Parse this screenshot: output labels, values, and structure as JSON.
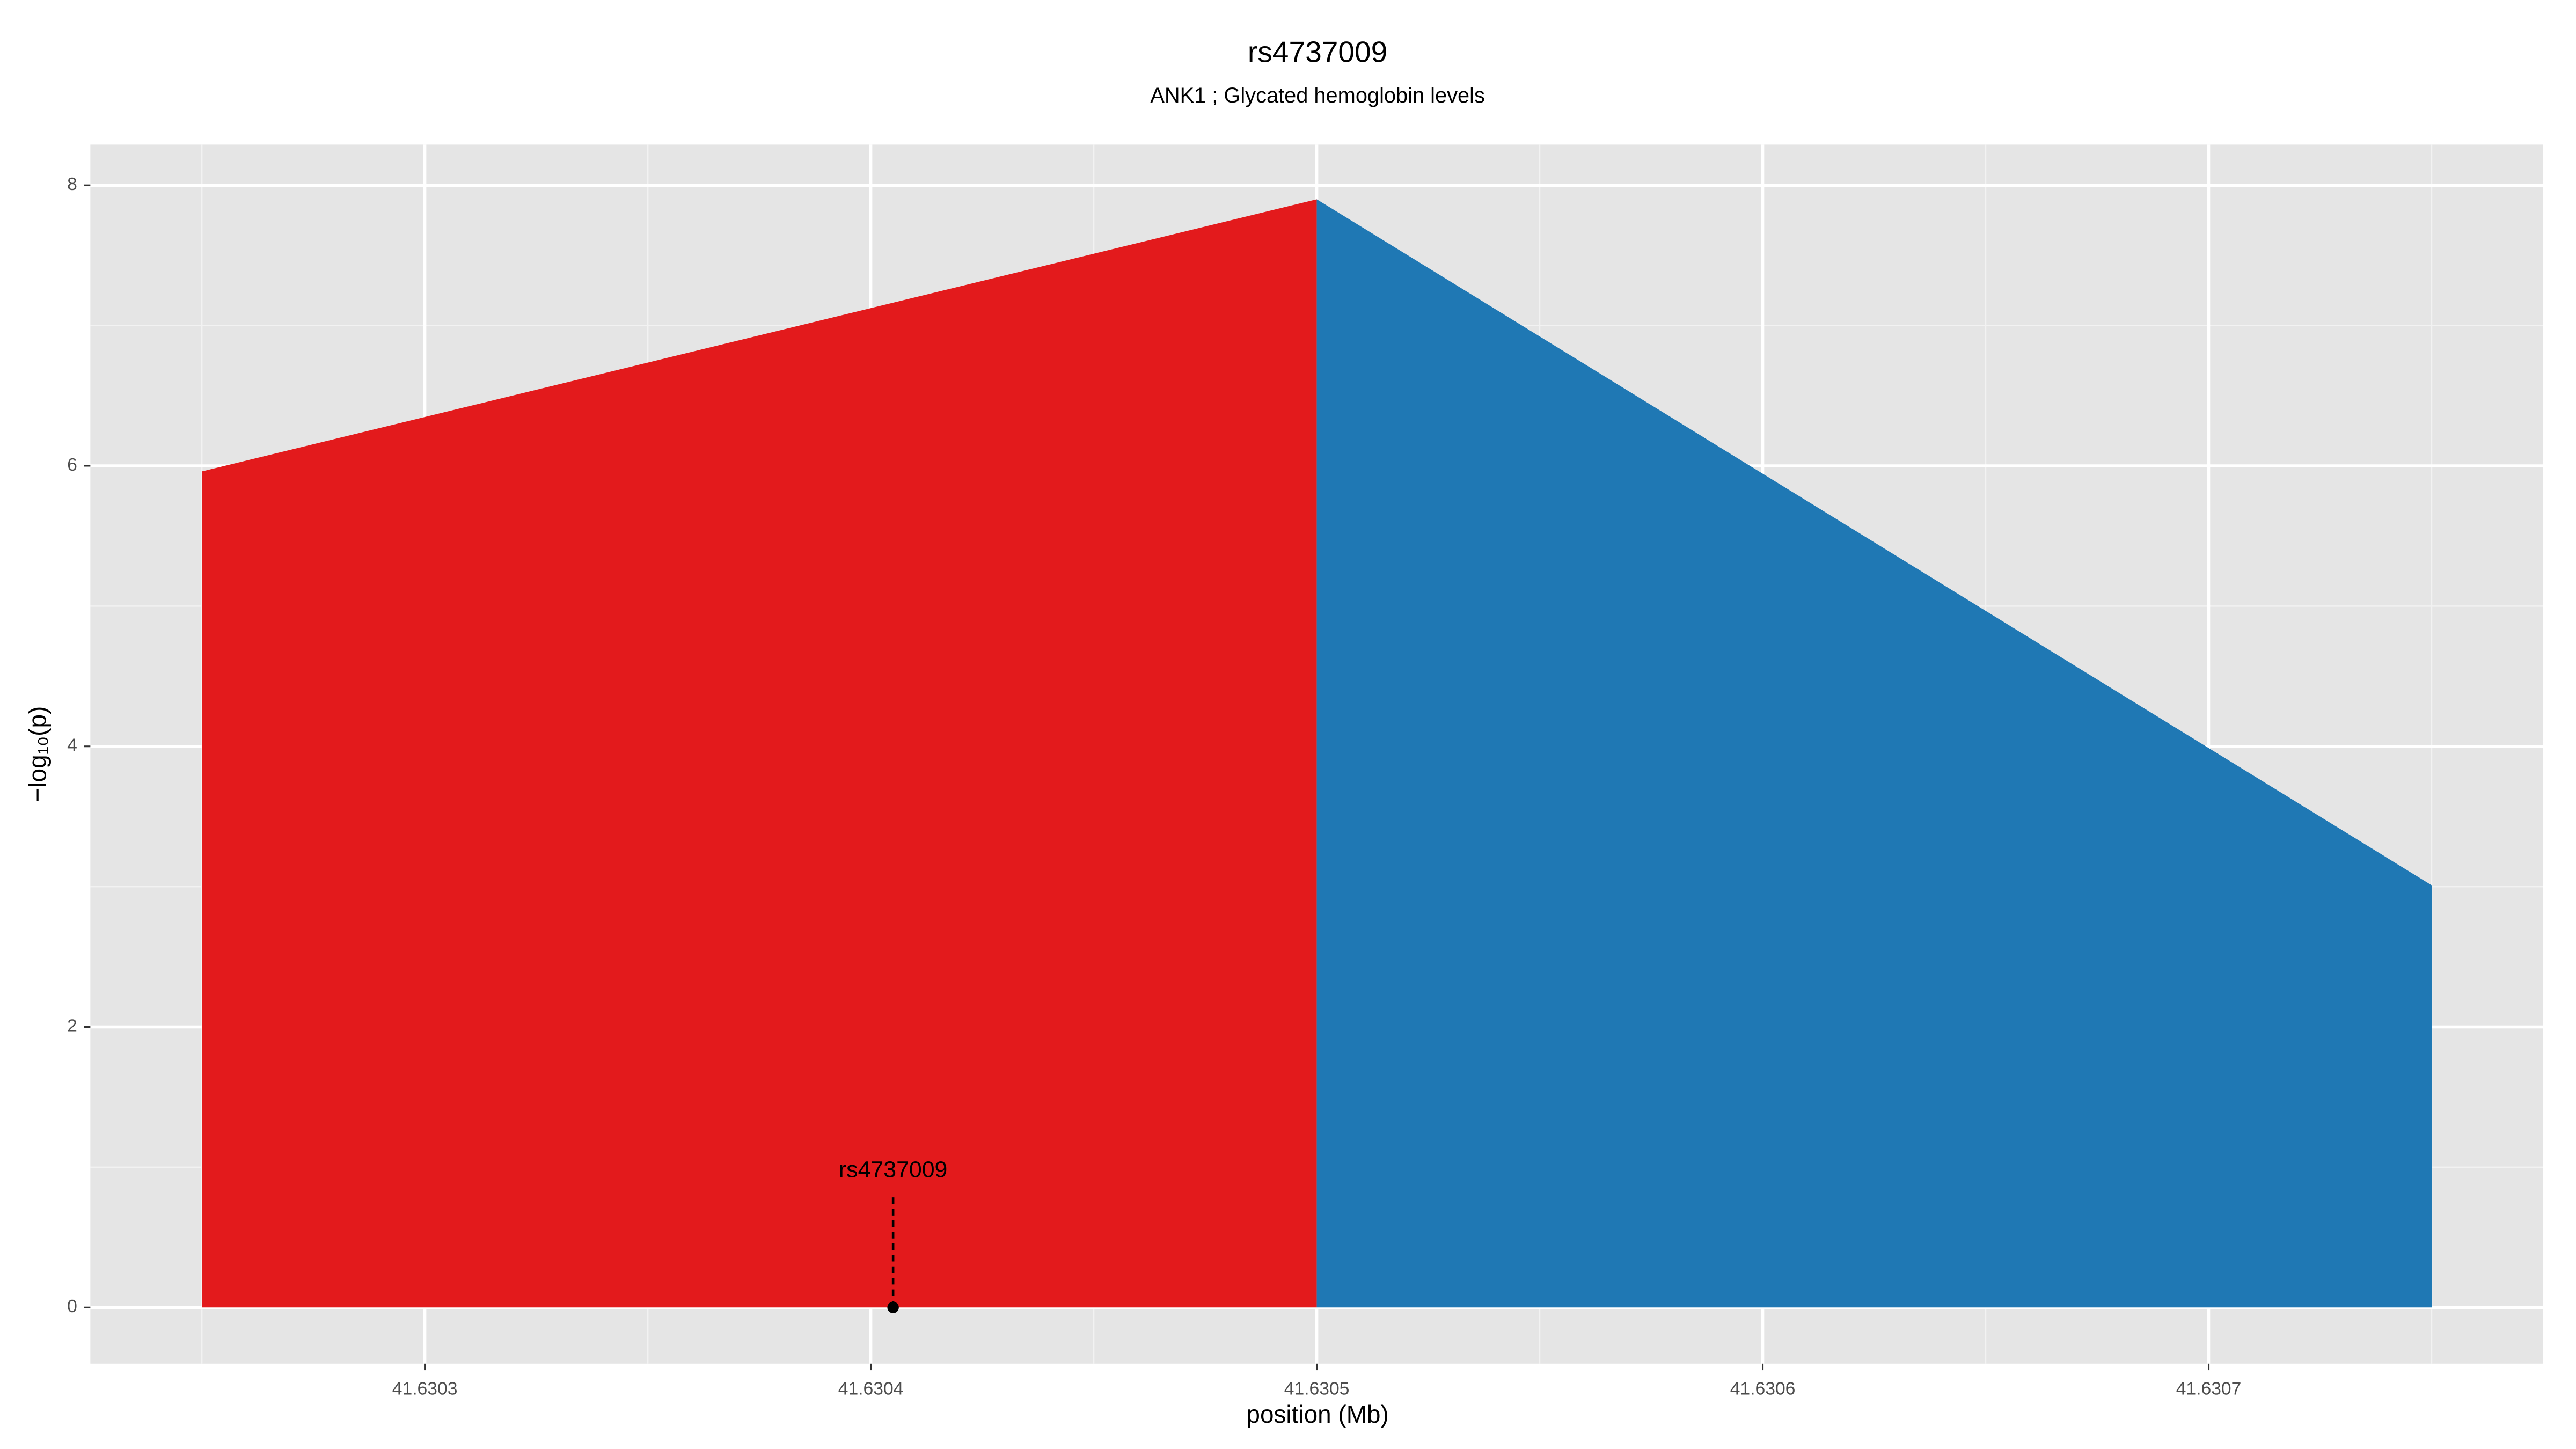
{
  "chart_data": {
    "type": "area",
    "title": "rs4737009",
    "subtitle": "ANK1 ; Glycated hemoglobin levels",
    "x_label": "position (Mb)",
    "y_label": "−log₁₀(p)",
    "series": [
      {
        "color": "#e31a1c",
        "x": [
          41.63025,
          41.6305
        ],
        "values": [
          5.96,
          7.9
        ]
      },
      {
        "color": "#1f78b4",
        "x": [
          41.6305,
          41.63075
        ],
        "values": [
          7.9,
          3.01
        ]
      }
    ],
    "annotation": {
      "text": "rs4737009",
      "x": 41.630405,
      "y": 0
    },
    "xlim": [
      41.630225,
      41.630775
    ],
    "ylim": [
      -0.4,
      8.29
    ],
    "xticks": [
      41.6303,
      41.6304,
      41.6305,
      41.6306,
      41.6307
    ],
    "yticks": [
      0,
      2,
      4,
      6,
      8
    ],
    "grid": true
  }
}
